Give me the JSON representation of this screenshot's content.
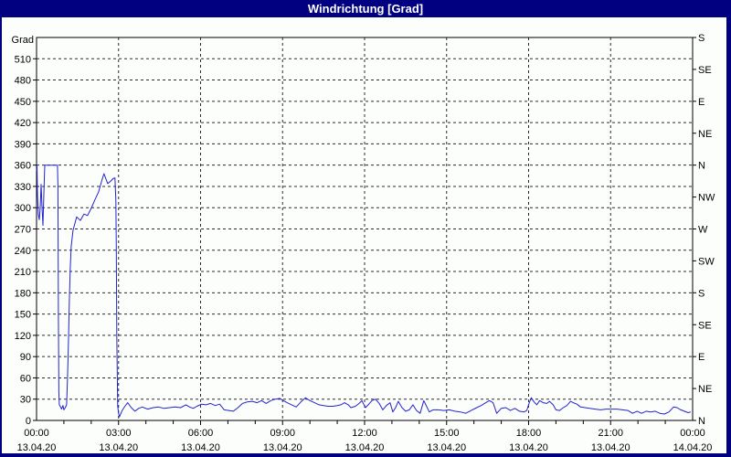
{
  "window": {
    "title": "Windrichtung [Grad]"
  },
  "colors": {
    "frame_bg": "#000080",
    "title_text": "#ffffff",
    "panel_bg": "#fcfefc",
    "plot_frame": "#000000",
    "grid": "#2b2b2b",
    "axis_text": "#000000",
    "line": "#2323cd"
  },
  "chart_data": {
    "type": "line",
    "title": "Windrichtung [Grad]",
    "ylabel": "Grad",
    "legend": "none",
    "grid": "dashed",
    "y_axis": {
      "min": 0,
      "max": 540,
      "grid_step": 30,
      "tick_labels": [
        0,
        30,
        60,
        90,
        120,
        150,
        180,
        210,
        240,
        270,
        300,
        330,
        360,
        390,
        420,
        450,
        480,
        510
      ]
    },
    "right_axis": {
      "tick_step": 45,
      "labels": [
        {
          "deg": 540,
          "label": "S"
        },
        {
          "deg": 495,
          "label": "SE"
        },
        {
          "deg": 450,
          "label": "E"
        },
        {
          "deg": 405,
          "label": "NE"
        },
        {
          "deg": 360,
          "label": "N"
        },
        {
          "deg": 315,
          "label": "NW"
        },
        {
          "deg": 270,
          "label": "W"
        },
        {
          "deg": 225,
          "label": "SW"
        },
        {
          "deg": 180,
          "label": "S"
        },
        {
          "deg": 135,
          "label": "SE"
        },
        {
          "deg": 90,
          "label": "E"
        },
        {
          "deg": 45,
          "label": "NE"
        },
        {
          "deg": 0,
          "label": "N"
        }
      ]
    },
    "x_axis": {
      "max_minutes": 1440,
      "minor_tick_minutes": 60,
      "major_tick_minutes": 180,
      "labels": [
        {
          "minute": 0,
          "time": "00:00",
          "date": "13.04.20"
        },
        {
          "minute": 180,
          "time": "03:00",
          "date": "13.04.20"
        },
        {
          "minute": 360,
          "time": "06:00",
          "date": "13.04.20"
        },
        {
          "minute": 540,
          "time": "09:00",
          "date": "13.04.20"
        },
        {
          "minute": 720,
          "time": "12:00",
          "date": "13.04.20"
        },
        {
          "minute": 900,
          "time": "15:00",
          "date": "13.04.20"
        },
        {
          "minute": 1080,
          "time": "18:00",
          "date": "13.04.20"
        },
        {
          "minute": 1260,
          "time": "21:00",
          "date": "13.04.20"
        },
        {
          "minute": 1440,
          "time": "00:00",
          "date": "14.04.20"
        }
      ]
    },
    "series": [
      {
        "name": "Windrichtung",
        "unit": "Grad",
        "points": [
          [
            0,
            352
          ],
          [
            1,
            360
          ],
          [
            2,
            318
          ],
          [
            4,
            290
          ],
          [
            6,
            283
          ],
          [
            8,
            300
          ],
          [
            10,
            333
          ],
          [
            12,
            300
          ],
          [
            14,
            275
          ],
          [
            16,
            320
          ],
          [
            18,
            360
          ],
          [
            46,
            360
          ],
          [
            47,
            330
          ],
          [
            48,
            150
          ],
          [
            49,
            40
          ],
          [
            50,
            22
          ],
          [
            52,
            20
          ],
          [
            55,
            16
          ],
          [
            58,
            21
          ],
          [
            60,
            15
          ],
          [
            63,
            18
          ],
          [
            66,
            22
          ],
          [
            68,
            60
          ],
          [
            70,
            110
          ],
          [
            72,
            170
          ],
          [
            74,
            215
          ],
          [
            76,
            245
          ],
          [
            80,
            268
          ],
          [
            88,
            287
          ],
          [
            96,
            282
          ],
          [
            104,
            291
          ],
          [
            112,
            289
          ],
          [
            120,
            299
          ],
          [
            128,
            311
          ],
          [
            136,
            322
          ],
          [
            144,
            340
          ],
          [
            148,
            348
          ],
          [
            156,
            334
          ],
          [
            162,
            337
          ],
          [
            168,
            341
          ],
          [
            172,
            342
          ],
          [
            174,
            310
          ],
          [
            175,
            240
          ],
          [
            176,
            120
          ],
          [
            178,
            20
          ],
          [
            180,
            10
          ],
          [
            182,
            5
          ],
          [
            188,
            14
          ],
          [
            194,
            20
          ],
          [
            200,
            25
          ],
          [
            208,
            18
          ],
          [
            216,
            13
          ],
          [
            224,
            17
          ],
          [
            232,
            19
          ],
          [
            244,
            16
          ],
          [
            256,
            18
          ],
          [
            268,
            19
          ],
          [
            280,
            17
          ],
          [
            292,
            18
          ],
          [
            304,
            19
          ],
          [
            316,
            18
          ],
          [
            328,
            22
          ],
          [
            336,
            19
          ],
          [
            344,
            17
          ],
          [
            352,
            20
          ],
          [
            362,
            23
          ],
          [
            372,
            22
          ],
          [
            382,
            24
          ],
          [
            392,
            21
          ],
          [
            402,
            23
          ],
          [
            412,
            15
          ],
          [
            422,
            14
          ],
          [
            432,
            13
          ],
          [
            442,
            18
          ],
          [
            452,
            24
          ],
          [
            462,
            26
          ],
          [
            474,
            27
          ],
          [
            484,
            25
          ],
          [
            494,
            28
          ],
          [
            504,
            24
          ],
          [
            514,
            28
          ],
          [
            524,
            30
          ],
          [
            534,
            31
          ],
          [
            542,
            28
          ],
          [
            550,
            25
          ],
          [
            560,
            22
          ],
          [
            570,
            19
          ],
          [
            580,
            26
          ],
          [
            590,
            32
          ],
          [
            600,
            28
          ],
          [
            610,
            25
          ],
          [
            620,
            22
          ],
          [
            630,
            21
          ],
          [
            640,
            20
          ],
          [
            650,
            20
          ],
          [
            660,
            21
          ],
          [
            668,
            22
          ],
          [
            676,
            25
          ],
          [
            684,
            22
          ],
          [
            690,
            18
          ],
          [
            700,
            20
          ],
          [
            708,
            24
          ],
          [
            714,
            28
          ],
          [
            722,
            18
          ],
          [
            728,
            22
          ],
          [
            736,
            28
          ],
          [
            744,
            30
          ],
          [
            752,
            24
          ],
          [
            760,
            15
          ],
          [
            768,
            21
          ],
          [
            776,
            25
          ],
          [
            782,
            12
          ],
          [
            788,
            18
          ],
          [
            794,
            27
          ],
          [
            802,
            18
          ],
          [
            810,
            13
          ],
          [
            818,
            15
          ],
          [
            826,
            22
          ],
          [
            834,
            14
          ],
          [
            842,
            10
          ],
          [
            850,
            28
          ],
          [
            856,
            20
          ],
          [
            862,
            12
          ],
          [
            870,
            15
          ],
          [
            882,
            15
          ],
          [
            894,
            14
          ],
          [
            906,
            15
          ],
          [
            918,
            13
          ],
          [
            930,
            12
          ],
          [
            942,
            10
          ],
          [
            954,
            14
          ],
          [
            966,
            18
          ],
          [
            976,
            21
          ],
          [
            986,
            25
          ],
          [
            994,
            28
          ],
          [
            1002,
            25
          ],
          [
            1010,
            10
          ],
          [
            1020,
            17
          ],
          [
            1030,
            18
          ],
          [
            1040,
            14
          ],
          [
            1050,
            17
          ],
          [
            1060,
            13
          ],
          [
            1070,
            12
          ],
          [
            1076,
            14
          ],
          [
            1082,
            26
          ],
          [
            1086,
            32
          ],
          [
            1092,
            26
          ],
          [
            1098,
            22
          ],
          [
            1104,
            28
          ],
          [
            1112,
            25
          ],
          [
            1120,
            24
          ],
          [
            1126,
            27
          ],
          [
            1134,
            22
          ],
          [
            1140,
            15
          ],
          [
            1148,
            14
          ],
          [
            1156,
            18
          ],
          [
            1164,
            21
          ],
          [
            1172,
            27
          ],
          [
            1178,
            25
          ],
          [
            1186,
            23
          ],
          [
            1194,
            19
          ],
          [
            1204,
            18
          ],
          [
            1214,
            17
          ],
          [
            1226,
            16
          ],
          [
            1238,
            15
          ],
          [
            1250,
            16
          ],
          [
            1262,
            16
          ],
          [
            1274,
            16
          ],
          [
            1286,
            15
          ],
          [
            1298,
            14
          ],
          [
            1308,
            10
          ],
          [
            1318,
            13
          ],
          [
            1328,
            10
          ],
          [
            1338,
            13
          ],
          [
            1348,
            12
          ],
          [
            1358,
            13
          ],
          [
            1368,
            10
          ],
          [
            1378,
            9
          ],
          [
            1388,
            12
          ],
          [
            1398,
            19
          ],
          [
            1406,
            18
          ],
          [
            1414,
            15
          ],
          [
            1422,
            13
          ],
          [
            1430,
            11
          ],
          [
            1436,
            12
          ]
        ]
      }
    ]
  }
}
